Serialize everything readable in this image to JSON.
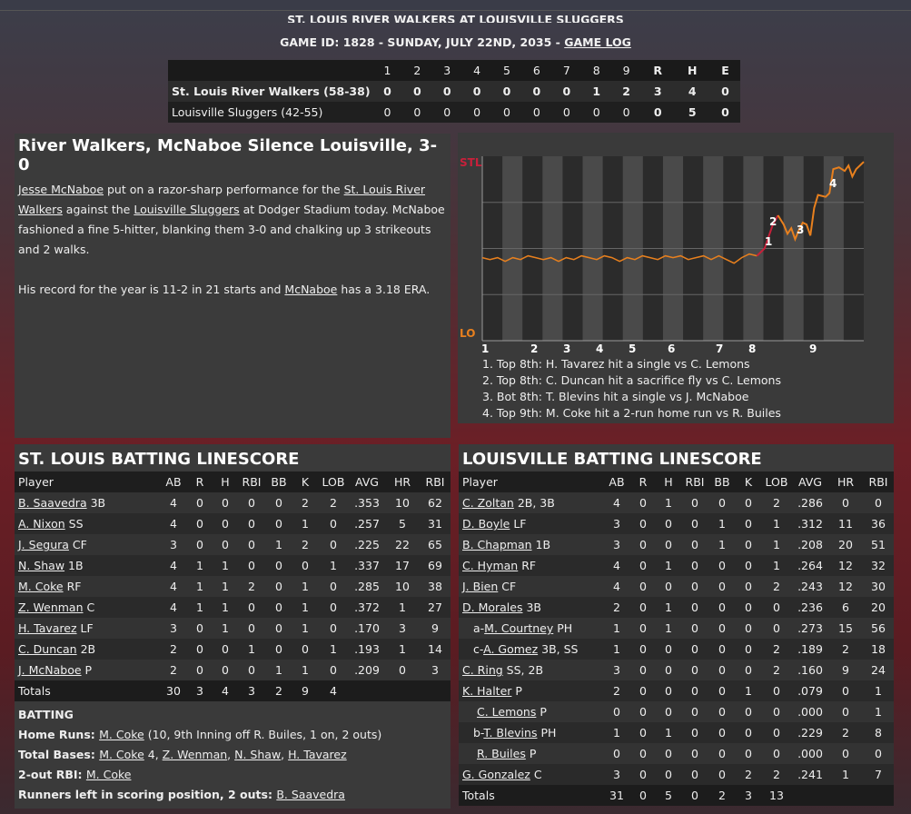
{
  "header": {
    "title": "ST. LOUIS RIVER WALKERS AT LOUISVILLE SLUGGERS",
    "game_info": "GAME ID: 1828 - SUNDAY, JULY 22ND, 2035 - ",
    "game_log_link": "GAME LOG"
  },
  "linescore": {
    "columns": [
      "1",
      "2",
      "3",
      "4",
      "5",
      "6",
      "7",
      "8",
      "9",
      "R",
      "H",
      "E"
    ],
    "rows": [
      {
        "team": "St. Louis River Walkers (58-38)",
        "innings": [
          "0",
          "0",
          "0",
          "0",
          "0",
          "0",
          "0",
          "1",
          "2"
        ],
        "r": "3",
        "h": "4",
        "e": "0"
      },
      {
        "team": "Louisville Sluggers (42-55)",
        "innings": [
          "0",
          "0",
          "0",
          "0",
          "0",
          "0",
          "0",
          "0",
          "0"
        ],
        "r": "0",
        "h": "5",
        "e": "0"
      }
    ]
  },
  "story": {
    "headline": "River Walkers, McNaboe Silence Louisville, 3-0",
    "p1": {
      "link1": "Jesse McNaboe",
      "t1": " put on a razor-sharp performance for the ",
      "link2": "St. Louis River Walkers",
      "t2": " against the ",
      "link3": "Louisville Sluggers",
      "t3": " at Dodger Stadium today. McNaboe fashioned a fine 5-hitter, blanking them 3-0 and chalking up 3 strikeouts and 2 walks."
    },
    "p2": {
      "t1": "His record for the year is 11-2 in 21 starts and ",
      "link1": "McNaboe",
      "t2": " has a 3.18 ERA."
    }
  },
  "chart": {
    "top_label": "STL",
    "bottom_label": "LO",
    "innings": [
      "1",
      "2",
      "3",
      "4",
      "5",
      "6",
      "7",
      "8",
      "9"
    ],
    "markers": [
      "1",
      "2",
      "3",
      "4"
    ],
    "colors": {
      "stl": "#c8203a",
      "lo": "#e8801e"
    },
    "notes": [
      "1. Top 8th: H. Tavarez hit a single vs C. Lemons",
      "2. Top 8th: C. Duncan hit a sacrifice fly vs C. Lemons",
      "3. Bot 8th: T. Blevins hit a single vs J. McNaboe",
      "4. Top 9th: M. Coke hit a 2-run home run vs R. Builes"
    ]
  },
  "stl": {
    "title": "ST. LOUIS BATTING LINESCORE",
    "headers": [
      "Player",
      "AB",
      "R",
      "H",
      "RBI",
      "BB",
      "K",
      "LOB",
      "AVG",
      "HR",
      "RBI"
    ],
    "rows": [
      {
        "prefix": "",
        "name": "B. Saavedra",
        "pos": " 3B",
        "s": [
          "4",
          "0",
          "0",
          "0",
          "0",
          "2",
          "2",
          ".353",
          "10",
          "62"
        ]
      },
      {
        "prefix": "",
        "name": "A. Nixon",
        "pos": " SS",
        "s": [
          "4",
          "0",
          "0",
          "0",
          "0",
          "1",
          "0",
          ".257",
          "5",
          "31"
        ]
      },
      {
        "prefix": "",
        "name": "J. Segura",
        "pos": " CF",
        "s": [
          "3",
          "0",
          "0",
          "0",
          "1",
          "2",
          "0",
          ".225",
          "22",
          "65"
        ]
      },
      {
        "prefix": "",
        "name": "N. Shaw",
        "pos": " 1B",
        "s": [
          "4",
          "1",
          "1",
          "0",
          "0",
          "0",
          "1",
          ".337",
          "17",
          "69"
        ]
      },
      {
        "prefix": "",
        "name": "M. Coke",
        "pos": " RF",
        "s": [
          "4",
          "1",
          "1",
          "2",
          "0",
          "1",
          "0",
          ".285",
          "10",
          "38"
        ]
      },
      {
        "prefix": "",
        "name": "Z. Wenman",
        "pos": " C",
        "s": [
          "4",
          "1",
          "1",
          "0",
          "0",
          "1",
          "0",
          ".372",
          "1",
          "27"
        ]
      },
      {
        "prefix": "",
        "name": "H. Tavarez",
        "pos": " LF",
        "s": [
          "3",
          "0",
          "1",
          "0",
          "0",
          "1",
          "0",
          ".170",
          "3",
          "9"
        ]
      },
      {
        "prefix": "",
        "name": "C. Duncan",
        "pos": " 2B",
        "s": [
          "2",
          "0",
          "0",
          "1",
          "0",
          "0",
          "1",
          ".193",
          "1",
          "14"
        ]
      },
      {
        "prefix": "",
        "name": "J. McNaboe",
        "pos": " P",
        "s": [
          "2",
          "0",
          "0",
          "0",
          "1",
          "1",
          "0",
          ".209",
          "0",
          "3"
        ]
      }
    ],
    "totals": {
      "label": "Totals",
      "s": [
        "30",
        "3",
        "4",
        "3",
        "2",
        "9",
        "4",
        "",
        "",
        ""
      ]
    },
    "extras": {
      "batting_label": "BATTING",
      "hr_label": "Home Runs: ",
      "hr_name": "M. Coke",
      "hr_text": " (10, 9th Inning off R. Builes, 1 on, 2 outs)",
      "tb_label": "Total Bases: ",
      "tb_n1": "M. Coke",
      "tb_t1": " 4, ",
      "tb_n2": "Z. Wenman",
      "tb_t2": ", ",
      "tb_n3": "N. Shaw",
      "tb_t3": ", ",
      "tb_n4": "H. Tavarez",
      "rbi_label": "2-out RBI: ",
      "rbi_name": "M. Coke",
      "risp_label": "Runners left in scoring position, 2 outs: ",
      "risp_name": "B. Saavedra"
    }
  },
  "lou": {
    "title": "LOUISVILLE BATTING LINESCORE",
    "headers": [
      "Player",
      "AB",
      "R",
      "H",
      "RBI",
      "BB",
      "K",
      "LOB",
      "AVG",
      "HR",
      "RBI"
    ],
    "rows": [
      {
        "prefix": "",
        "name": "C. Zoltan",
        "pos": " 2B, 3B",
        "s": [
          "4",
          "0",
          "1",
          "0",
          "0",
          "0",
          "2",
          ".286",
          "0",
          "0"
        ]
      },
      {
        "prefix": "",
        "name": "D. Boyle",
        "pos": " LF",
        "s": [
          "3",
          "0",
          "0",
          "0",
          "1",
          "0",
          "1",
          ".312",
          "11",
          "36"
        ]
      },
      {
        "prefix": "",
        "name": "B. Chapman",
        "pos": " 1B",
        "s": [
          "3",
          "0",
          "0",
          "0",
          "1",
          "0",
          "1",
          ".208",
          "20",
          "51"
        ]
      },
      {
        "prefix": "",
        "name": "C. Hyman",
        "pos": " RF",
        "s": [
          "4",
          "0",
          "1",
          "0",
          "0",
          "0",
          "1",
          ".264",
          "12",
          "32"
        ]
      },
      {
        "prefix": "",
        "name": "J. Bien",
        "pos": " CF",
        "s": [
          "4",
          "0",
          "0",
          "0",
          "0",
          "0",
          "2",
          ".243",
          "12",
          "30"
        ]
      },
      {
        "prefix": "",
        "name": "D. Morales",
        "pos": " 3B",
        "s": [
          "2",
          "0",
          "1",
          "0",
          "0",
          "0",
          "0",
          ".236",
          "6",
          "20"
        ]
      },
      {
        "prefix": "a-",
        "name": "M. Courtney",
        "pos": " PH",
        "s": [
          "1",
          "0",
          "1",
          "0",
          "0",
          "0",
          "0",
          ".273",
          "15",
          "56"
        ]
      },
      {
        "prefix": "c-",
        "name": "A. Gomez",
        "pos": " 3B, SS",
        "s": [
          "1",
          "0",
          "0",
          "0",
          "0",
          "0",
          "2",
          ".189",
          "2",
          "18"
        ]
      },
      {
        "prefix": "",
        "name": "C. Ring",
        "pos": " SS, 2B",
        "s": [
          "3",
          "0",
          "0",
          "0",
          "0",
          "0",
          "2",
          ".160",
          "9",
          "24"
        ]
      },
      {
        "prefix": "",
        "name": "K. Halter",
        "pos": " P",
        "s": [
          "2",
          "0",
          "0",
          "0",
          "0",
          "1",
          "0",
          ".079",
          "0",
          "1"
        ]
      },
      {
        "prefix": "",
        "name": "C. Lemons",
        "pos": " P",
        "s": [
          "0",
          "0",
          "0",
          "0",
          "0",
          "0",
          "0",
          ".000",
          "0",
          "1"
        ]
      },
      {
        "prefix": "b-",
        "name": "T. Blevins",
        "pos": " PH",
        "s": [
          "1",
          "0",
          "1",
          "0",
          "0",
          "0",
          "0",
          ".229",
          "2",
          "8"
        ]
      },
      {
        "prefix": "",
        "name": "R. Builes",
        "pos": " P",
        "s": [
          "0",
          "0",
          "0",
          "0",
          "0",
          "0",
          "0",
          ".000",
          "0",
          "0"
        ]
      },
      {
        "prefix": "",
        "name": "G. Gonzalez",
        "pos": " C",
        "s": [
          "3",
          "0",
          "0",
          "0",
          "0",
          "2",
          "2",
          ".241",
          "1",
          "7"
        ]
      }
    ],
    "totals": {
      "label": "Totals",
      "s": [
        "31",
        "0",
        "5",
        "0",
        "2",
        "3",
        "13",
        "",
        "",
        ""
      ]
    }
  }
}
